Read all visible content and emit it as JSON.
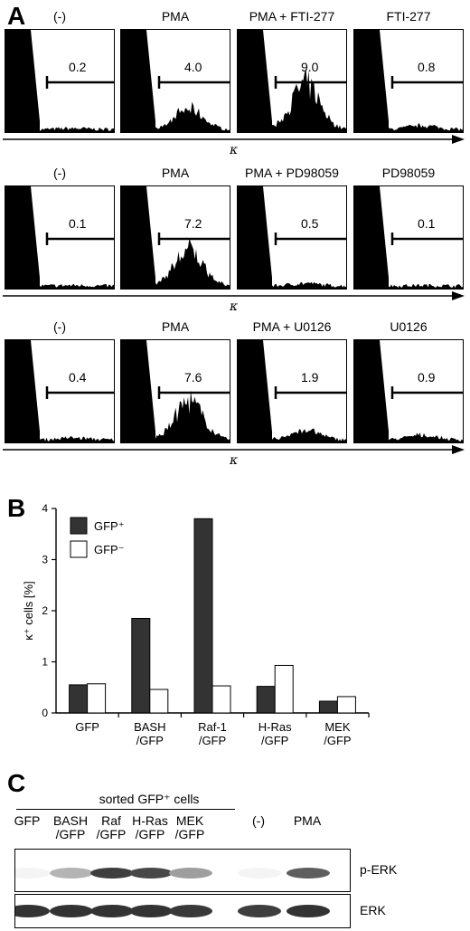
{
  "panel_a": {
    "letter": "A",
    "axis_symbol": "κ",
    "rows": [
      {
        "titles": [
          "(-)",
          "PMA",
          "PMA + FTI-277",
          "FTI-277"
        ],
        "values": [
          "0.2",
          "4.0",
          "9.0",
          "0.8"
        ]
      },
      {
        "titles": [
          "(-)",
          "PMA",
          "PMA + PD98059",
          "PD98059"
        ],
        "values": [
          "0.1",
          "7.2",
          "0.5",
          "0.1"
        ]
      },
      {
        "titles": [
          "(-)",
          "PMA",
          "PMA + U0126",
          "U0126"
        ],
        "values": [
          "0.4",
          "7.6",
          "1.9",
          "0.9"
        ]
      }
    ]
  },
  "panel_b": {
    "letter": "B",
    "chart_data": {
      "type": "bar",
      "categories": [
        "GFP",
        "BASH\n/GFP",
        "Raf-1\n/GFP",
        "H-Ras\n/GFP",
        "MEK\n/GFP"
      ],
      "series": [
        {
          "name": "GFP⁺",
          "values": [
            0.55,
            1.85,
            3.8,
            0.52,
            0.23
          ],
          "color": "#333333"
        },
        {
          "name": "GFP⁻",
          "values": [
            0.57,
            0.46,
            0.53,
            0.93,
            0.32
          ],
          "color": "#ffffff"
        }
      ],
      "ylabel": "κ⁺ cells [%]",
      "ylim": [
        0,
        4
      ],
      "yticks": [
        "0",
        "1",
        "2",
        "3",
        "4"
      ],
      "legend": "top-left"
    }
  },
  "panel_c": {
    "letter": "C",
    "group_label": "sorted GFP⁺ cells",
    "lanes": [
      "GFP",
      "BASH\n/GFP",
      "Raf\n/GFP",
      "H-Ras\n/GFP",
      "MEK\n/GFP",
      "(-)",
      "PMA"
    ],
    "blots": [
      "p-ERK",
      "ERK"
    ],
    "perk_intensity": [
      0.05,
      0.35,
      0.9,
      0.85,
      0.45,
      0.05,
      0.75
    ],
    "erk_intensity": [
      0.95,
      0.95,
      0.95,
      0.95,
      0.92,
      0.9,
      0.95
    ]
  }
}
